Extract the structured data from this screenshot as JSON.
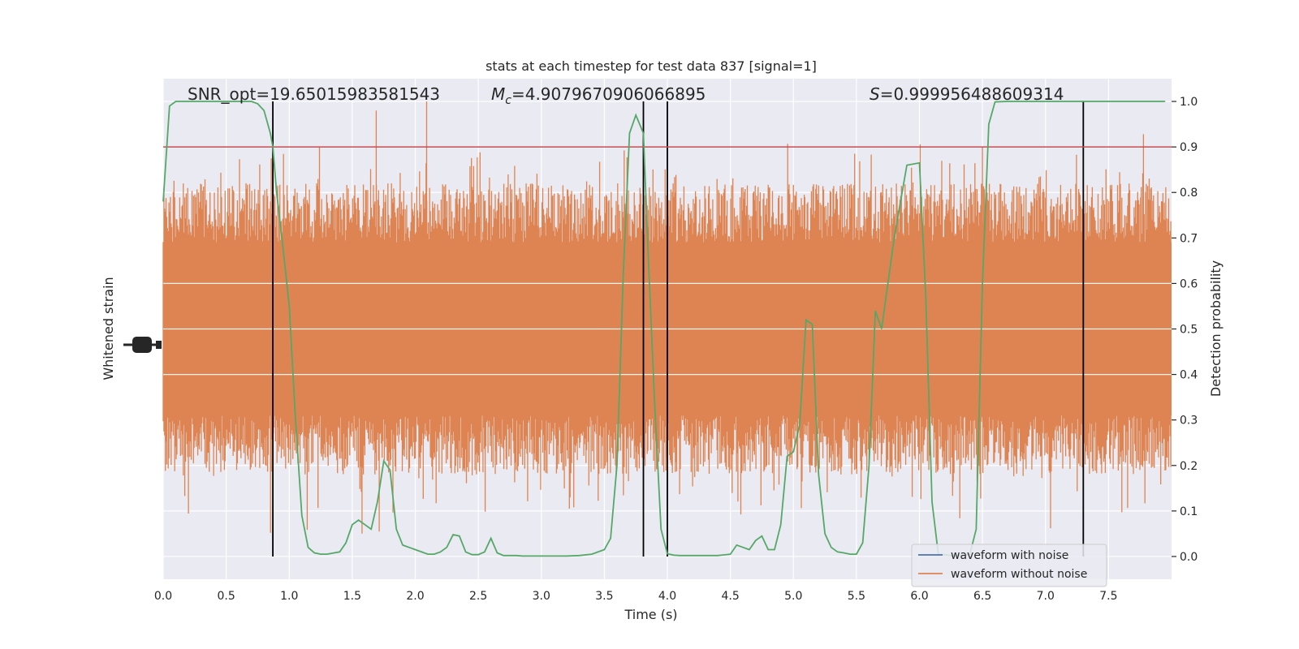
{
  "chart_data": {
    "type": "line",
    "title": "stats at each timestep for test data 837 [signal=1]",
    "xlabel": "Time (s)",
    "ylabel_left": "Whitened strain",
    "ylabel_right": "Detection probability",
    "xlim": [
      0,
      8
    ],
    "ylim_right": [
      -0.05,
      1.05
    ],
    "x_ticks": [
      "0.0",
      "0.5",
      "1.0",
      "1.5",
      "2.0",
      "2.5",
      "3.0",
      "3.5",
      "4.0",
      "4.5",
      "5.0",
      "5.5",
      "6.0",
      "6.5",
      "7.0",
      "7.5"
    ],
    "y_ticks_right": [
      "0.0",
      "0.1",
      "0.2",
      "0.3",
      "0.4",
      "0.5",
      "0.6",
      "0.7",
      "0.8",
      "0.9",
      "1.0"
    ],
    "grid": true,
    "legend_position": "lower right",
    "annotations": {
      "snr": "SNR_opt=19.65015983581543",
      "mc_prefix": "M",
      "mc_sub": "c",
      "mc_value": "=4.9079670906066895",
      "s_prefix": "S",
      "s_value": "=0.999956488609314"
    },
    "threshold": {
      "value": 0.9,
      "color": "#c44e52"
    },
    "vertical_lines": [
      0.87,
      3.81,
      4.0,
      7.3
    ],
    "series": [
      {
        "name": "waveform with noise",
        "color": "#4c72b0"
      },
      {
        "name": "waveform without noise",
        "color": "#dd8452"
      }
    ],
    "probability": {
      "color": "#55a868",
      "x": [
        0.0,
        0.05,
        0.1,
        0.15,
        0.2,
        0.3,
        0.4,
        0.5,
        0.6,
        0.7,
        0.75,
        0.8,
        0.85,
        0.87,
        0.9,
        0.95,
        1.0,
        1.05,
        1.1,
        1.15,
        1.2,
        1.25,
        1.3,
        1.4,
        1.45,
        1.5,
        1.55,
        1.6,
        1.65,
        1.7,
        1.75,
        1.8,
        1.85,
        1.9,
        1.95,
        2.0,
        2.1,
        2.15,
        2.2,
        2.25,
        2.3,
        2.35,
        2.4,
        2.45,
        2.5,
        2.55,
        2.6,
        2.65,
        2.7,
        2.75,
        2.8,
        2.85,
        2.9,
        2.95,
        3.0,
        3.1,
        3.2,
        3.3,
        3.4,
        3.5,
        3.55,
        3.6,
        3.65,
        3.7,
        3.75,
        3.81,
        3.85,
        3.9,
        3.95,
        4.0,
        4.05,
        4.1,
        4.15,
        4.2,
        4.25,
        4.3,
        4.4,
        4.5,
        4.55,
        4.6,
        4.65,
        4.7,
        4.75,
        4.8,
        4.85,
        4.9,
        4.95,
        5.0,
        5.05,
        5.1,
        5.15,
        5.2,
        5.25,
        5.3,
        5.35,
        5.4,
        5.45,
        5.5,
        5.55,
        5.6,
        5.65,
        5.7,
        5.8,
        5.9,
        6.0,
        6.05,
        6.1,
        6.15,
        6.2,
        6.25,
        6.3,
        6.35,
        6.4,
        6.45,
        6.5,
        6.55,
        6.6,
        6.7,
        6.8,
        6.9,
        7.0,
        7.1,
        7.2,
        7.25,
        7.3,
        7.35,
        7.4,
        7.45,
        7.5,
        7.6,
        7.7,
        7.8,
        7.9,
        7.95
      ],
      "y": [
        0.78,
        0.99,
        1.0,
        1.0,
        1.0,
        1.0,
        1.0,
        1.0,
        1.0,
        1.0,
        0.995,
        0.98,
        0.93,
        0.9,
        0.8,
        0.68,
        0.55,
        0.3,
        0.09,
        0.02,
        0.008,
        0.005,
        0.005,
        0.01,
        0.03,
        0.07,
        0.08,
        0.07,
        0.06,
        0.12,
        0.21,
        0.19,
        0.06,
        0.025,
        0.02,
        0.015,
        0.005,
        0.005,
        0.01,
        0.02,
        0.048,
        0.045,
        0.01,
        0.004,
        0.004,
        0.01,
        0.04,
        0.008,
        0.002,
        0.002,
        0.002,
        0.001,
        0.001,
        0.001,
        0.001,
        0.001,
        0.001,
        0.002,
        0.005,
        0.015,
        0.04,
        0.2,
        0.62,
        0.93,
        0.97,
        0.93,
        0.65,
        0.33,
        0.06,
        0.006,
        0.003,
        0.002,
        0.002,
        0.002,
        0.002,
        0.002,
        0.002,
        0.005,
        0.025,
        0.02,
        0.015,
        0.035,
        0.045,
        0.015,
        0.015,
        0.07,
        0.22,
        0.23,
        0.29,
        0.52,
        0.51,
        0.18,
        0.05,
        0.02,
        0.01,
        0.008,
        0.005,
        0.005,
        0.03,
        0.2,
        0.54,
        0.5,
        0.7,
        0.86,
        0.865,
        0.57,
        0.12,
        0.004,
        0.004,
        0.002,
        0.002,
        0.002,
        0.005,
        0.06,
        0.6,
        0.95,
        0.999,
        1.0,
        1.0,
        1.0,
        1.0,
        1.0,
        1.0,
        1.0,
        1.0,
        1.0,
        1.0,
        1.0,
        1.0,
        1.0,
        1.0,
        1.0,
        1.0,
        1.0
      ]
    }
  }
}
